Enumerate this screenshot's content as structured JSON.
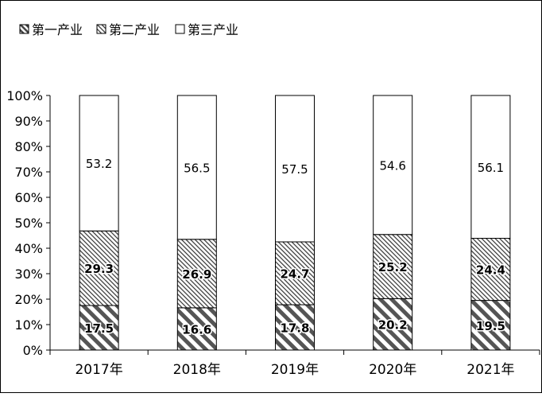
{
  "chart_data": {
    "type": "bar",
    "stacked": true,
    "percent": true,
    "categories": [
      "2017年",
      "2018年",
      "2019年",
      "2020年",
      "2021年"
    ],
    "series": [
      {
        "name": "第一产业",
        "values": [
          17.5,
          16.6,
          17.8,
          20.2,
          19.5
        ],
        "pattern": "wide-diagonal-hatch"
      },
      {
        "name": "第二产业",
        "values": [
          29.3,
          26.9,
          24.7,
          25.2,
          24.4
        ],
        "pattern": "fine-diagonal-hatch"
      },
      {
        "name": "第三产业",
        "values": [
          53.2,
          56.5,
          57.5,
          54.6,
          56.1
        ],
        "pattern": "none"
      }
    ],
    "yticks": [
      "0%",
      "10%",
      "20%",
      "30%",
      "40%",
      "50%",
      "60%",
      "70%",
      "80%",
      "90%",
      "100%"
    ],
    "ylim": [
      0,
      100
    ],
    "legend": "top-left",
    "grid": false,
    "title": "",
    "xlabel": "",
    "ylabel": ""
  },
  "colors": {
    "stroke": "#000000",
    "hatch": "#555555",
    "background": "#ffffff"
  }
}
